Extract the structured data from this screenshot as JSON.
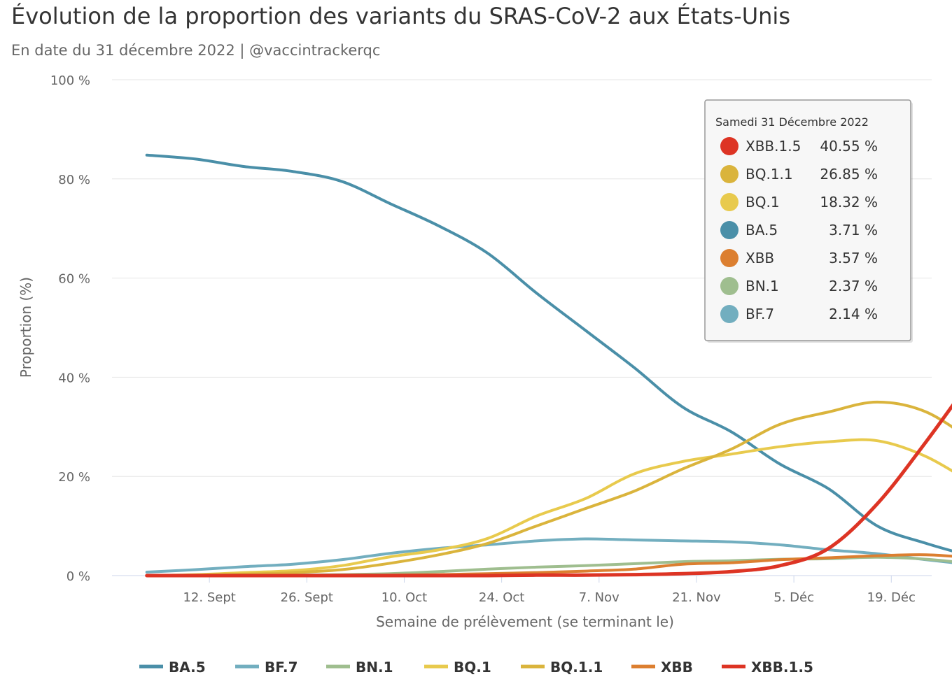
{
  "title": "Évolution de la proportion des variants du SRAS-CoV-2 aux États-Unis",
  "subtitle": "En date du 31 décembre 2022 | @vaccintrackerqc",
  "chart_data": {
    "type": "line",
    "xlabel": "Semaine de prélèvement (se terminant le)",
    "ylabel": "Proportion (%)",
    "ylim": [
      0,
      100
    ],
    "yticks": [
      0,
      20,
      40,
      60,
      80,
      100
    ],
    "ytick_labels": [
      "0 %",
      "20 %",
      "40 %",
      "60 %",
      "80 %",
      "100 %"
    ],
    "x": [
      "2022-09-03",
      "2022-09-10",
      "2022-09-17",
      "2022-09-24",
      "2022-10-01",
      "2022-10-08",
      "2022-10-15",
      "2022-10-22",
      "2022-10-29",
      "2022-11-05",
      "2022-11-12",
      "2022-11-19",
      "2022-11-26",
      "2022-12-03",
      "2022-12-10",
      "2022-12-17",
      "2022-12-24",
      "2022-12-31"
    ],
    "xtick_dates": [
      "2022-09-12",
      "2022-09-26",
      "2022-10-10",
      "2022-10-24",
      "2022-11-07",
      "2022-11-21",
      "2022-12-05",
      "2022-12-19"
    ],
    "xtick_labels": [
      "12. Sept",
      "26. Sept",
      "10. Oct",
      "24. Oct",
      "7. Nov",
      "21. Nov",
      "5. Déc",
      "19. Déc"
    ],
    "grid": true,
    "legend_position": "bottom",
    "series": [
      {
        "name": "BA.5",
        "color": "#4a8fa8",
        "values": [
          84.8,
          84.0,
          82.5,
          81.5,
          79.5,
          75.0,
          70.5,
          65.0,
          57.0,
          49.5,
          42.0,
          34.0,
          29.0,
          22.5,
          17.5,
          10.0,
          6.5,
          3.71
        ]
      },
      {
        "name": "BF.7",
        "color": "#72aebf",
        "values": [
          0.7,
          1.2,
          1.8,
          2.3,
          3.2,
          4.5,
          5.5,
          6.2,
          7.0,
          7.4,
          7.2,
          7.0,
          6.8,
          6.2,
          5.2,
          4.4,
          3.2,
          2.14
        ]
      },
      {
        "name": "BN.1",
        "color": "#9fbe8f",
        "values": [
          0.0,
          0.0,
          0.1,
          0.1,
          0.2,
          0.4,
          0.8,
          1.3,
          1.7,
          2.0,
          2.4,
          2.8,
          3.0,
          3.3,
          3.4,
          3.7,
          3.3,
          2.37
        ]
      },
      {
        "name": "BQ.1",
        "color": "#e8ca4d",
        "values": [
          0.0,
          0.2,
          0.6,
          1.0,
          2.0,
          3.8,
          5.2,
          7.5,
          12.0,
          15.5,
          20.5,
          23.0,
          24.5,
          26.0,
          27.0,
          27.2,
          24.0,
          18.32
        ]
      },
      {
        "name": "BQ.1.1",
        "color": "#dab43c",
        "values": [
          0.0,
          0.1,
          0.3,
          0.6,
          1.2,
          2.5,
          4.2,
          6.5,
          10.0,
          13.5,
          17.0,
          21.5,
          25.5,
          30.5,
          33.0,
          35.0,
          33.0,
          26.85
        ]
      },
      {
        "name": "XBB",
        "color": "#dc7f30",
        "values": [
          0.0,
          0.0,
          0.0,
          0.0,
          0.1,
          0.1,
          0.2,
          0.4,
          0.6,
          0.9,
          1.3,
          2.3,
          2.6,
          3.2,
          3.6,
          4.0,
          4.2,
          3.57
        ]
      },
      {
        "name": "XBB.1.5",
        "color": "#dd3424",
        "values": [
          0.0,
          0.0,
          0.0,
          0.0,
          0.0,
          0.0,
          0.0,
          0.0,
          0.1,
          0.1,
          0.2,
          0.4,
          0.8,
          2.0,
          5.5,
          14.5,
          27.0,
          40.55
        ]
      }
    ],
    "tooltip": {
      "date_label": "Samedi 31 Décembre 2022",
      "rows": [
        {
          "name": "XBB.1.5",
          "value": "40.55 %",
          "color": "#dd3424"
        },
        {
          "name": "BQ.1.1",
          "value": "26.85 %",
          "color": "#dab43c"
        },
        {
          "name": "BQ.1",
          "value": "18.32 %",
          "color": "#e8ca4d"
        },
        {
          "name": "BA.5",
          "value": "3.71 %",
          "color": "#4a8fa8"
        },
        {
          "name": "XBB",
          "value": "3.57 %",
          "color": "#dc7f30"
        },
        {
          "name": "BN.1",
          "value": "2.37 %",
          "color": "#9fbe8f"
        },
        {
          "name": "BF.7",
          "value": "2.14 %",
          "color": "#72aebf"
        }
      ]
    }
  }
}
